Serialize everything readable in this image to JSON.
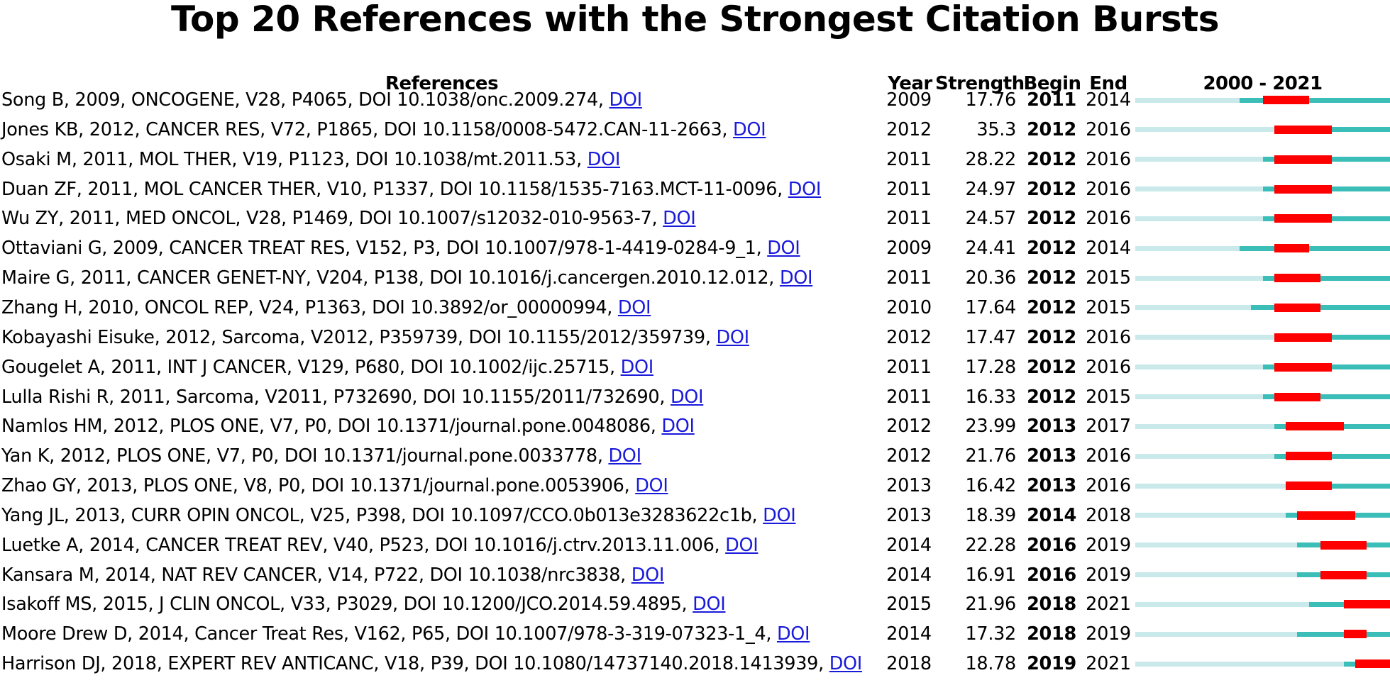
{
  "chart_data": {
    "type": "table",
    "title": "Top 20 References with the Strongest Citation Bursts",
    "columns": [
      "References",
      "Year",
      "Strength",
      "Begin",
      "End",
      "2000 - 2021"
    ],
    "range": [
      2000,
      2021
    ],
    "link_label": "DOI",
    "colors": {
      "pre_publication": "#c9e9ea",
      "active": "#3bbdb8",
      "burst": "#ff0000",
      "link": "#1a1adb"
    },
    "rows": [
      {
        "ref": "Song B, 2009, ONCOGENE, V28, P4065, DOI 10.1038/onc.2009.274,",
        "year": 2009,
        "strength": "17.76",
        "begin": 2011,
        "end": 2014
      },
      {
        "ref": "Jones KB, 2012, CANCER RES, V72, P1865, DOI 10.1158/0008-5472.CAN-11-2663,",
        "year": 2012,
        "strength": "35.3",
        "begin": 2012,
        "end": 2016
      },
      {
        "ref": "Osaki M, 2011, MOL THER, V19, P1123, DOI 10.1038/mt.2011.53,",
        "year": 2011,
        "strength": "28.22",
        "begin": 2012,
        "end": 2016
      },
      {
        "ref": "Duan ZF, 2011, MOL CANCER THER, V10, P1337, DOI 10.1158/1535-7163.MCT-11-0096,",
        "year": 2011,
        "strength": "24.97",
        "begin": 2012,
        "end": 2016
      },
      {
        "ref": "Wu ZY, 2011, MED ONCOL, V28, P1469, DOI 10.1007/s12032-010-9563-7,",
        "year": 2011,
        "strength": "24.57",
        "begin": 2012,
        "end": 2016
      },
      {
        "ref": "Ottaviani G, 2009, CANCER TREAT RES, V152, P3, DOI 10.1007/978-1-4419-0284-9_1,",
        "year": 2009,
        "strength": "24.41",
        "begin": 2012,
        "end": 2014
      },
      {
        "ref": "Maire G, 2011, CANCER GENET-NY, V204, P138, DOI 10.1016/j.cancergen.2010.12.012,",
        "year": 2011,
        "strength": "20.36",
        "begin": 2012,
        "end": 2015
      },
      {
        "ref": "Zhang H, 2010, ONCOL REP, V24, P1363, DOI 10.3892/or_00000994,",
        "year": 2010,
        "strength": "17.64",
        "begin": 2012,
        "end": 2015
      },
      {
        "ref": "Kobayashi Eisuke, 2012, Sarcoma, V2012, P359739, DOI 10.1155/2012/359739,",
        "year": 2012,
        "strength": "17.47",
        "begin": 2012,
        "end": 2016
      },
      {
        "ref": "Gougelet A, 2011, INT J CANCER, V129, P680, DOI 10.1002/ijc.25715,",
        "year": 2011,
        "strength": "17.28",
        "begin": 2012,
        "end": 2016
      },
      {
        "ref": "Lulla Rishi R, 2011, Sarcoma, V2011, P732690, DOI 10.1155/2011/732690,",
        "year": 2011,
        "strength": "16.33",
        "begin": 2012,
        "end": 2015
      },
      {
        "ref": "Namlos HM, 2012, PLOS ONE, V7, P0, DOI 10.1371/journal.pone.0048086,",
        "year": 2012,
        "strength": "23.99",
        "begin": 2013,
        "end": 2017
      },
      {
        "ref": "Yan K, 2012, PLOS ONE, V7, P0, DOI 10.1371/journal.pone.0033778,",
        "year": 2012,
        "strength": "21.76",
        "begin": 2013,
        "end": 2016
      },
      {
        "ref": "Zhao GY, 2013, PLOS ONE, V8, P0, DOI 10.1371/journal.pone.0053906,",
        "year": 2013,
        "strength": "16.42",
        "begin": 2013,
        "end": 2016
      },
      {
        "ref": "Yang JL, 2013, CURR OPIN ONCOL, V25, P398, DOI 10.1097/CCO.0b013e3283622c1b,",
        "year": 2013,
        "strength": "18.39",
        "begin": 2014,
        "end": 2018
      },
      {
        "ref": "Luetke A, 2014, CANCER TREAT REV, V40, P523, DOI 10.1016/j.ctrv.2013.11.006,",
        "year": 2014,
        "strength": "22.28",
        "begin": 2016,
        "end": 2019
      },
      {
        "ref": "Kansara M, 2014, NAT REV CANCER, V14, P722, DOI 10.1038/nrc3838,",
        "year": 2014,
        "strength": "16.91",
        "begin": 2016,
        "end": 2019
      },
      {
        "ref": "Isakoff MS, 2015, J CLIN ONCOL, V33, P3029, DOI 10.1200/JCO.2014.59.4895,",
        "year": 2015,
        "strength": "21.96",
        "begin": 2018,
        "end": 2021
      },
      {
        "ref": "Moore Drew D, 2014, Cancer Treat Res, V162, P65, DOI 10.1007/978-3-319-07323-1_4,",
        "year": 2014,
        "strength": "17.32",
        "begin": 2018,
        "end": 2019
      },
      {
        "ref": "Harrison DJ, 2018, EXPERT REV ANTICANC, V18, P39, DOI 10.1080/14737140.2018.1413939,",
        "year": 2018,
        "strength": "18.78",
        "begin": 2019,
        "end": 2021
      }
    ]
  }
}
